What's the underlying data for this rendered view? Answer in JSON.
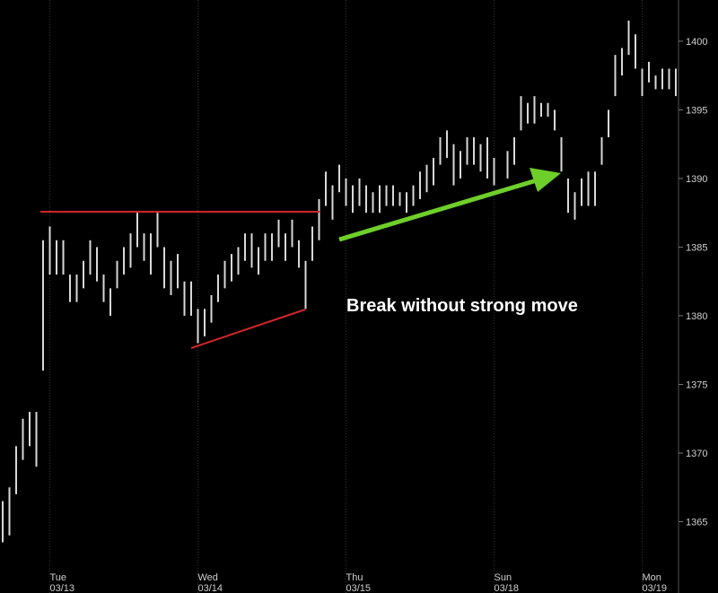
{
  "chart_data": {
    "type": "ohlc",
    "categories": [
      null,
      null,
      null,
      null,
      null,
      null,
      null,
      {
        "day": "Tue",
        "date": "03/13"
      },
      null,
      null,
      null,
      null,
      null,
      null,
      null,
      null,
      null,
      null,
      null,
      null,
      null,
      null,
      null,
      null,
      null,
      null,
      null,
      null,
      null,
      {
        "day": "Wed",
        "date": "03/14"
      },
      null,
      null,
      null,
      null,
      null,
      null,
      null,
      null,
      null,
      null,
      null,
      null,
      null,
      null,
      null,
      null,
      null,
      null,
      null,
      null,
      null,
      {
        "day": "Thu",
        "date": "03/15"
      },
      null,
      null,
      null,
      null,
      null,
      null,
      null,
      null,
      null,
      null,
      null,
      null,
      null,
      null,
      null,
      null,
      null,
      null,
      null,
      null,
      null,
      {
        "day": "Sun",
        "date": "03/18"
      },
      null,
      null,
      null,
      null,
      null,
      null,
      null,
      null,
      null,
      null,
      null,
      null,
      null,
      null,
      null,
      null,
      null,
      null,
      null,
      null,
      null,
      {
        "day": "Mon",
        "date": "03/19"
      },
      null,
      null,
      null,
      null,
      null
    ],
    "series": [
      {
        "color": "#d8d8d8",
        "high": [
          1366.5,
          1367.5,
          1370.5,
          1372.5,
          1373,
          1373,
          1385.5,
          1386.5,
          1385.5,
          1385.5,
          1383,
          1383,
          1384,
          1385.5,
          1385,
          1383,
          1382,
          1384,
          1385,
          1386,
          1387.5,
          1386,
          1386,
          1387.5,
          1385,
          1384,
          1384.5,
          1382.5,
          1382.5,
          1380.5,
          1380.5,
          1381.5,
          1383,
          1384,
          1384.5,
          1385,
          1386,
          1386,
          1385,
          1386,
          1386,
          1387,
          1386,
          1387,
          1385.5,
          1384,
          1386.5,
          1388.5,
          1390.5,
          1389.5,
          1391,
          1390,
          1389.5,
          1390,
          1389.5,
          1389,
          1389.5,
          1389.5,
          1389.5,
          1389,
          1389,
          1389.5,
          1390.5,
          1391,
          1391.5,
          1393,
          1393.5,
          1392.5,
          1392,
          1393,
          1393,
          1392.5,
          1393,
          1391.5,
          null,
          1392,
          1393,
          1396,
          1395.5,
          1396,
          1395.5,
          1395.5,
          1395,
          1393,
          1390,
          1389,
          1390,
          1390.5,
          1390.5,
          1393,
          1395,
          1399,
          1399.5,
          1401.5,
          1400.5,
          1398,
          1398.5,
          1397.5,
          1398,
          1398,
          1398
        ],
        "low": [
          1363.5,
          1364,
          1367,
          1369.5,
          1370.5,
          1369,
          1376,
          1383,
          1383,
          1383,
          1381,
          1381,
          1382,
          1383,
          1382.5,
          1381,
          1380,
          1382,
          1383,
          1383.5,
          1385,
          1384,
          1383,
          1385,
          1382,
          1381.5,
          1382,
          1380,
          1380,
          1378,
          1378.5,
          1379.5,
          1381,
          1382,
          1382.5,
          1383,
          1384,
          1383.5,
          1383,
          1384,
          1384,
          1385,
          1384,
          1385,
          1383.5,
          1380.5,
          1384,
          1385.5,
          1388,
          1387,
          1389,
          1388,
          1387.5,
          1388,
          1387.5,
          1387.5,
          1387.5,
          1388,
          1388,
          1388,
          1387.5,
          1388,
          1388.5,
          1389,
          1389.5,
          1391,
          1391.5,
          1389.5,
          1390,
          1391,
          1391,
          1390.5,
          1390,
          1389.5,
          null,
          1390,
          1391,
          1393.5,
          1394,
          1394,
          1394.5,
          1394.5,
          1393.5,
          1390.5,
          1387.5,
          1387,
          1388,
          1388,
          1388,
          1391,
          1393,
          1396,
          1397.5,
          1399,
          1398,
          1396,
          1397,
          1396.5,
          1396.5,
          1396.5,
          1396
        ]
      }
    ],
    "ylim": [
      1361.7,
      1403
    ],
    "yticks": [
      1365,
      1370,
      1375,
      1380,
      1385,
      1390,
      1395,
      1400
    ],
    "annotation": "Break without strong move"
  }
}
